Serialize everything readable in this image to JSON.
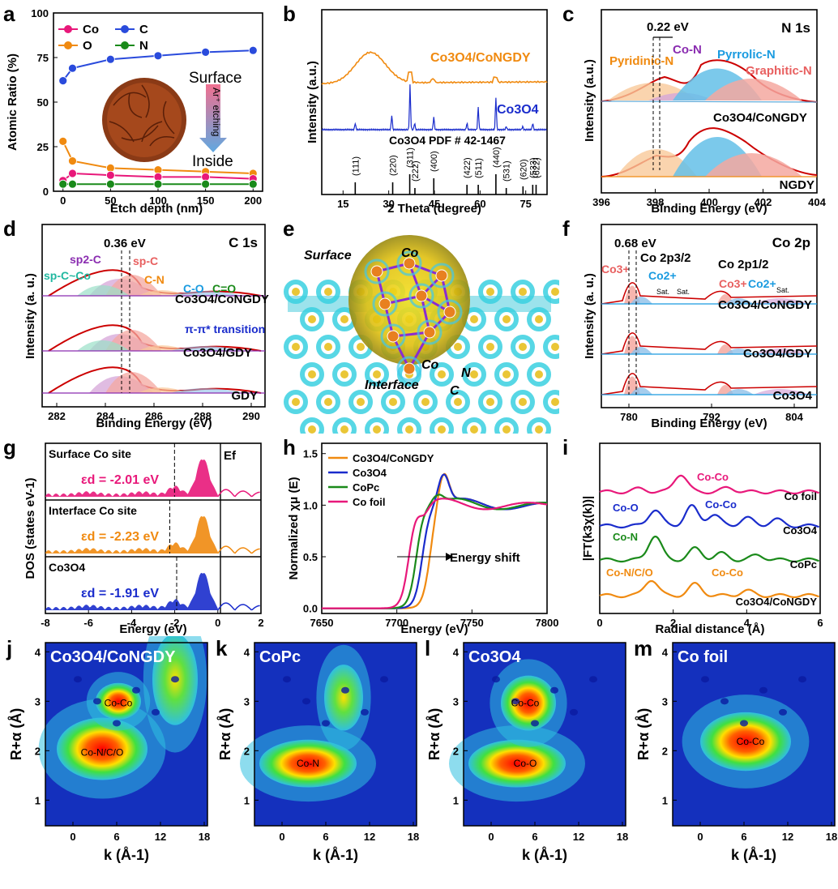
{
  "panels": {
    "a": {
      "label": "a",
      "xlabel": "Etch depth (nm)",
      "ylabel": "Atomic Ratio (%)",
      "legend": [
        "Co",
        "C",
        "O",
        "N"
      ],
      "annot_surface": "Surface",
      "annot_inside": "Inside",
      "annot_etch": "Ar⁺ etching",
      "xticks": [
        "0",
        "50",
        "100",
        "150",
        "200"
      ],
      "yticks": [
        "0",
        "25",
        "50",
        "75",
        "100"
      ]
    },
    "b": {
      "label": "b",
      "xlabel": "2 Theta (degree)",
      "ylabel": "Intensity (a.u.)",
      "series1": "Co3O4/CoNGDY",
      "series2": "Co3O4",
      "pdf": "Co3O4 PDF # 42-1467",
      "xticks": [
        "15",
        "30",
        "45",
        "60",
        "75"
      ],
      "hkl": [
        "(111)",
        "(220)",
        "(311)",
        "(222)",
        "(400)",
        "(422)",
        "(511)",
        "(440)",
        "(531)",
        "(620)",
        "(533)",
        "(622)"
      ]
    },
    "c": {
      "label": "c",
      "title": "N 1s",
      "shift": "0.22 eV",
      "xlabel": "Binding Energy (eV)",
      "ylabel": "Intensity (a.u.)",
      "peaks": [
        "Pyridinic-N",
        "Co-N",
        "Pyrrolic-N",
        "Graphitic-N"
      ],
      "samples": [
        "Co3O4/CoNGDY",
        "NGDY"
      ],
      "xticks": [
        "396",
        "398",
        "400",
        "402",
        "404"
      ]
    },
    "d": {
      "label": "d",
      "title": "C 1s",
      "shift": "0.36 eV",
      "xlabel": "Binding Energy (eV)",
      "ylabel": "Intensity (a. u.)",
      "peaks": [
        "sp2-C",
        "sp-C",
        "sp-C~Co",
        "C-N",
        "C-O",
        "C=O"
      ],
      "pipi": "π-π* transition",
      "samples": [
        "Co3O4/CoNGDY",
        "Co3O4/GDY",
        "GDY"
      ],
      "xticks": [
        "282",
        "284",
        "286",
        "288",
        "290"
      ]
    },
    "e": {
      "label": "e",
      "surface": "Surface",
      "co_top": "Co",
      "co": "Co",
      "n": "N",
      "c": "C",
      "interface": "Interface"
    },
    "f": {
      "label": "f",
      "title": "Co 2p",
      "shift": "0.68 eV",
      "co2p32": "Co 2p3/2",
      "co2p12": "Co 2p1/2",
      "co3": "Co3+",
      "co2": "Co2+",
      "sat": "Sat.",
      "xlabel": "Binding Energy (eV)",
      "ylabel": "Intensity (a. u.)",
      "samples": [
        "Co3O4/CoNGDY",
        "Co3O4/GDY",
        "Co3O4"
      ],
      "xticks": [
        "780",
        "792",
        "804"
      ]
    },
    "g": {
      "label": "g",
      "xlabel": "Energy (eV)",
      "ylabel": "DOS (states eV-1)",
      "ef": "Ef",
      "rows": [
        {
          "title": "Surface Co site",
          "ed": "εd = -2.01 eV",
          "color": "#e8187a"
        },
        {
          "title": "Interface Co site",
          "ed": "εd = -2.23 eV",
          "color": "#f08a10"
        },
        {
          "title": "Co3O4",
          "ed": "εd = -1.91 eV",
          "color": "#1a2ccc"
        }
      ],
      "xticks": [
        "-8",
        "-6",
        "-4",
        "-2",
        "0",
        "2"
      ]
    },
    "h": {
      "label": "h",
      "xlabel": "Energy (eV)",
      "ylabel": "Normalized χμ (E)",
      "legend": [
        "Co3O4/CoNGDY",
        "Co3O4",
        "CoPc",
        "Co foil"
      ],
      "shift": "Energy shift",
      "xticks": [
        "7650",
        "7700",
        "7750",
        "7800"
      ],
      "yticks": [
        "0.0",
        "0.5",
        "1.0",
        "1.5"
      ]
    },
    "i": {
      "label": "i",
      "xlabel": "Radial distance (Å)",
      "ylabel": "|FT(k3χ(k))|",
      "annots": [
        "Co-Co",
        "Co-O",
        "Co-Co",
        "Co-N",
        "Co-N/C/O",
        "Co-Co"
      ],
      "samples": [
        "Co foil",
        "Co3O4",
        "CoPc",
        "Co3O4/CoNGDY"
      ],
      "xticks": [
        "0",
        "2",
        "4",
        "6"
      ]
    },
    "wt": [
      {
        "label": "j",
        "title": "Co3O4/CoNGDY",
        "spots": [
          "Co-Co",
          "Co-N/C/O"
        ]
      },
      {
        "label": "k",
        "title": "CoPc",
        "spots": [
          "Co-N"
        ]
      },
      {
        "label": "l",
        "title": "Co3O4",
        "spots": [
          "Co-Co",
          "Co-O"
        ]
      },
      {
        "label": "m",
        "title": "Co foil",
        "spots": [
          "Co-Co"
        ]
      }
    ],
    "wt_xlabel": "k (Å-1)",
    "wt_ylabel": "R+α (Å)",
    "wt_xticks": [
      "0",
      "6",
      "12",
      "18"
    ],
    "wt_yticks": [
      "1",
      "2",
      "3",
      "4"
    ]
  },
  "chart_data": [
    {
      "type": "line",
      "panel": "a",
      "x": [
        0,
        10,
        50,
        100,
        150,
        200
      ],
      "series": [
        {
          "name": "C",
          "values": [
            62,
            69,
            74,
            76,
            78,
            79
          ],
          "color": "#2a4bdc"
        },
        {
          "name": "O",
          "values": [
            28,
            17,
            13,
            12,
            11,
            10
          ],
          "color": "#f08a10"
        },
        {
          "name": "Co",
          "values": [
            6,
            10,
            9,
            8,
            8,
            7
          ],
          "color": "#e8187a"
        },
        {
          "name": "N",
          "values": [
            4,
            4,
            4,
            4,
            4,
            4
          ],
          "color": "#1a8a1a"
        }
      ],
      "ylim": [
        0,
        100
      ],
      "xlim": [
        -10,
        210
      ]
    },
    {
      "type": "line",
      "panel": "h",
      "xlim": [
        7650,
        7800
      ],
      "ylim": [
        -0.05,
        1.6
      ],
      "series": [
        {
          "name": "Co3O4/CoNGDY",
          "color": "#f08a10",
          "edge": 7722,
          "peak": 7731,
          "peakval": 1.33
        },
        {
          "name": "Co3O4",
          "color": "#1a2ccc",
          "edge": 7717,
          "peak": 7731,
          "peakval": 1.3
        },
        {
          "name": "CoPc",
          "color": "#1a8a1a",
          "edge": 7713,
          "peak": 7727,
          "peakval": 1.1
        },
        {
          "name": "Co foil",
          "color": "#e8187a",
          "edge": 7708,
          "peak": 7718,
          "peakval": 0.92
        }
      ]
    }
  ]
}
